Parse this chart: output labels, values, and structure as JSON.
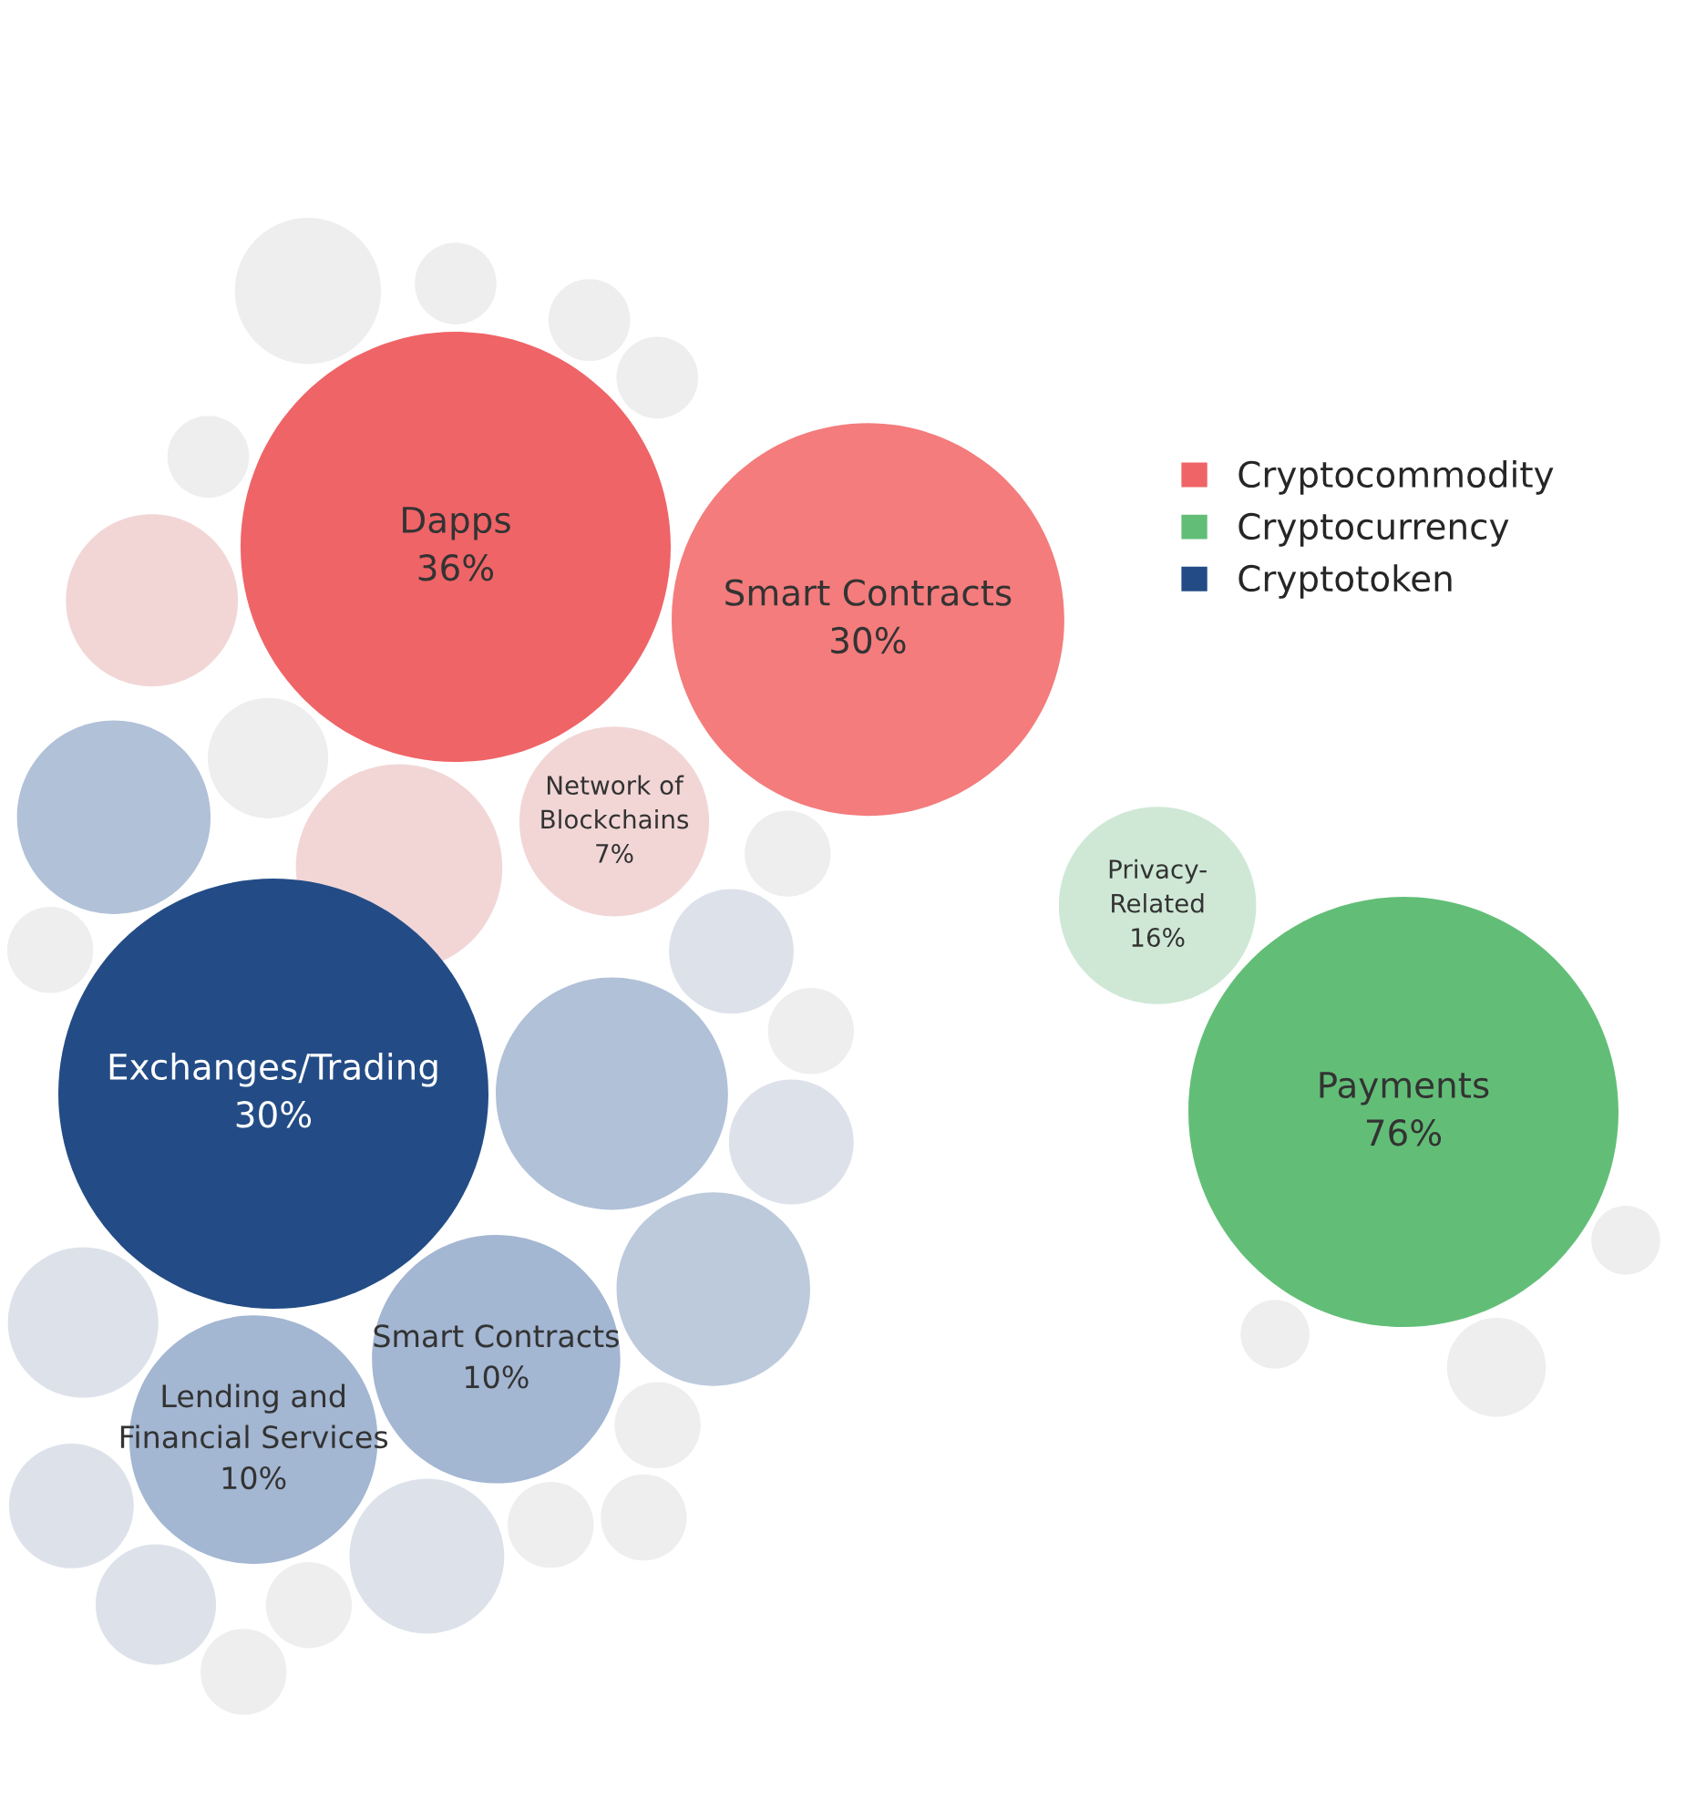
{
  "chart_data": [
    {
      "type": "other",
      "legend": "right",
      "categories": [
        "Dapps",
        "Smart Contracts",
        "Network of\nBlockchains"
      ],
      "series": [
        {
          "name": "Cryptocommodity",
          "color": "#ef6467",
          "values": [
            36,
            30,
            7
          ],
          "value_labels": [
            "36%",
            "30%",
            "7%"
          ],
          "colors": [
            "#ef6467",
            "#f47c7c",
            "#f2d6d6"
          ]
        }
      ]
    },
    {
      "type": "other",
      "legend": "right",
      "categories": [
        "Payments",
        "Privacy-\nRelated"
      ],
      "series": [
        {
          "name": "Cryptocurrency",
          "color": "#62be77",
          "values": [
            76,
            16
          ],
          "value_labels": [
            "76%",
            "16%"
          ],
          "colors": [
            "#62be77",
            "#cfe8d6"
          ]
        }
      ]
    },
    {
      "type": "other",
      "legend": "right",
      "categories": [
        "Exchanges/Trading",
        "Smart Contracts",
        "Lending and\nFinancial Services"
      ],
      "series": [
        {
          "name": "Cryptotoken",
          "color": "#234c86",
          "values": [
            30,
            10,
            10
          ],
          "value_labels": [
            "30%",
            "10%",
            "10%"
          ],
          "colors": [
            "#234c86",
            "#a3b6d2",
            "#a3b6d2"
          ]
        }
      ]
    }
  ]
}
